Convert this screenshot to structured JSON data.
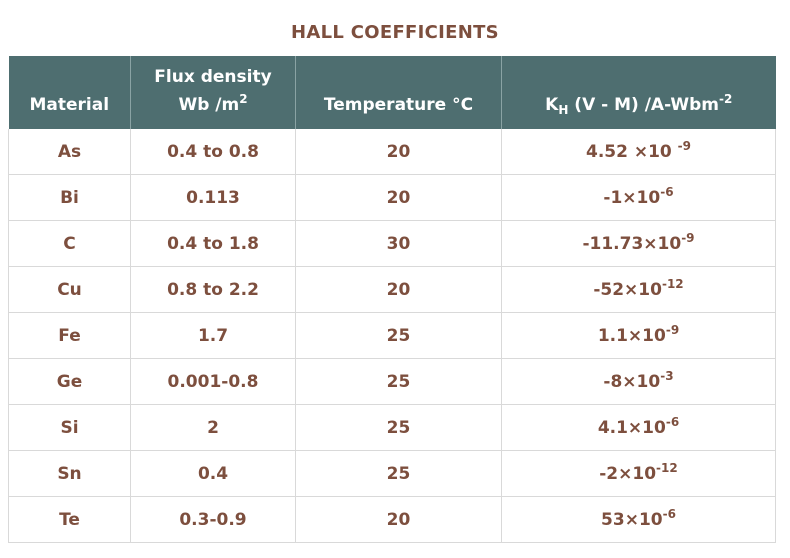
{
  "title": "HALL COEFFICIENTS",
  "headers": {
    "material": "Material",
    "flux_line1": "Flux density",
    "flux_line2": "Wb /m",
    "flux_sup": "2",
    "temperature": "Temperature °C",
    "kh_main": "K",
    "kh_sub": "H",
    "kh_rest": " (V - M) /A-Wbm",
    "kh_sup": "-2"
  },
  "rows": [
    {
      "material": "As",
      "flux": "0.4 to 0.8",
      "temp": "20",
      "kh_base": "4.52 ×10 ",
      "kh_exp": "-9"
    },
    {
      "material": "Bi",
      "flux": "0.113",
      "temp": "20",
      "kh_base": "-1×10",
      "kh_exp": "-6"
    },
    {
      "material": "C",
      "flux": "0.4 to 1.8",
      "temp": "30",
      "kh_base": "-11.73×10",
      "kh_exp": "-9"
    },
    {
      "material": "Cu",
      "flux": "0.8 to 2.2",
      "temp": "20",
      "kh_base": "-52×10",
      "kh_exp": "-12"
    },
    {
      "material": "Fe",
      "flux": "1.7",
      "temp": "25",
      "kh_base": "1.1×10",
      "kh_exp": "-9"
    },
    {
      "material": "Ge",
      "flux": "0.001-0.8",
      "temp": "25",
      "kh_base": "-8×10",
      "kh_exp": "-3"
    },
    {
      "material": "Si",
      "flux": "2",
      "temp": "25",
      "kh_base": "4.1×10",
      "kh_exp": "-6"
    },
    {
      "material": "Sn",
      "flux": "0.4",
      "temp": "25",
      "kh_base": "-2×10",
      "kh_exp": "-12"
    },
    {
      "material": "Te",
      "flux": "0.3-0.9",
      "temp": "20",
      "kh_base": "53×10",
      "kh_exp": "-6"
    }
  ],
  "colors": {
    "header_bg": "#4e6e70",
    "text": "#7d4f3e",
    "grid": "#d9d9d9"
  }
}
